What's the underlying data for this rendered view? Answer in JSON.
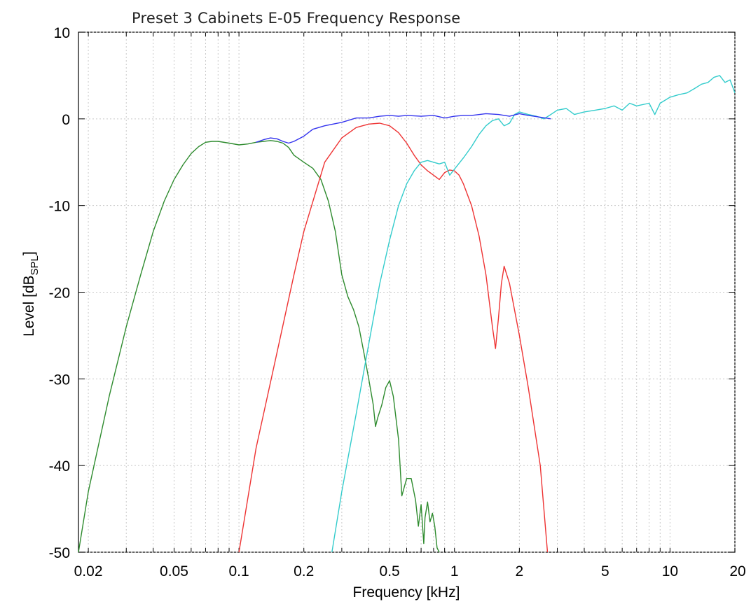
{
  "chart_data": {
    "type": "line",
    "title": "Preset 3 Cabinets E-05 Frequency Response",
    "xlabel": "Frequency [kHz]",
    "ylabel": "Level [dBSPL]",
    "ylabel_main": "Level [dB",
    "ylabel_sub": "SPL",
    "ylabel_end": "]",
    "x_scale": "log",
    "xlim": [
      0.018,
      20
    ],
    "ylim": [
      -50,
      10
    ],
    "grid": true,
    "xticks": [
      0.02,
      0.05,
      0.1,
      0.2,
      0.5,
      1,
      2,
      5,
      10,
      20
    ],
    "xtick_labels": [
      "0.02",
      "0.05",
      "0.1",
      "0.2",
      "0.5",
      "1",
      "2",
      "5",
      "10",
      "20"
    ],
    "yticks": [
      10,
      0,
      -10,
      -20,
      -30,
      -40,
      -50
    ],
    "ytick_labels": [
      "10",
      "0",
      "-10",
      "-20",
      "-30",
      "-40",
      "-50"
    ],
    "series": [
      {
        "color": "#2e8b2e",
        "x": [
          0.018,
          0.02,
          0.025,
          0.03,
          0.035,
          0.04,
          0.045,
          0.05,
          0.055,
          0.06,
          0.065,
          0.07,
          0.075,
          0.08,
          0.09,
          0.1,
          0.11,
          0.12,
          0.13,
          0.14,
          0.15,
          0.16,
          0.17,
          0.18,
          0.2,
          0.22,
          0.24,
          0.26,
          0.28,
          0.3,
          0.32,
          0.34,
          0.36,
          0.38,
          0.4,
          0.42,
          0.43,
          0.44,
          0.46,
          0.48,
          0.5,
          0.52,
          0.55,
          0.57,
          0.6,
          0.63,
          0.66,
          0.68,
          0.7,
          0.72,
          0.73,
          0.75,
          0.77,
          0.79,
          0.81,
          0.83,
          0.85
        ],
        "y": [
          -50,
          -43,
          -32,
          -24,
          -18,
          -13,
          -9.5,
          -7,
          -5.3,
          -4,
          -3.2,
          -2.7,
          -2.6,
          -2.6,
          -2.8,
          -3.0,
          -2.9,
          -2.7,
          -2.6,
          -2.5,
          -2.6,
          -2.8,
          -3.3,
          -4.2,
          -5,
          -5.7,
          -7,
          -9.5,
          -13,
          -18,
          -20.5,
          -22,
          -24,
          -27,
          -30,
          -33,
          -35.5,
          -34.5,
          -33,
          -31,
          -30.2,
          -32,
          -37,
          -43.5,
          -41.5,
          -41.5,
          -44,
          -47,
          -44.5,
          -49,
          -46,
          -44.2,
          -46.5,
          -45.5,
          -47,
          -49.5,
          -50
        ]
      },
      {
        "color": "#ee3333",
        "x": [
          0.1,
          0.12,
          0.15,
          0.18,
          0.2,
          0.25,
          0.3,
          0.35,
          0.4,
          0.45,
          0.5,
          0.55,
          0.6,
          0.65,
          0.7,
          0.75,
          0.8,
          0.85,
          0.9,
          0.95,
          1.0,
          1.05,
          1.1,
          1.2,
          1.3,
          1.4,
          1.5,
          1.55,
          1.6,
          1.65,
          1.7,
          1.8,
          2.0,
          2.2,
          2.5,
          2.7
        ],
        "y": [
          -50,
          -38,
          -27,
          -18,
          -13,
          -5,
          -2.2,
          -1,
          -0.6,
          -0.5,
          -0.8,
          -1.6,
          -2.8,
          -4.2,
          -5.3,
          -6,
          -6.5,
          -7,
          -6.2,
          -5.9,
          -6,
          -6.5,
          -7.5,
          -10,
          -13.5,
          -18,
          -24,
          -26.5,
          -23,
          -19,
          -17,
          -19,
          -25,
          -31,
          -40,
          -50
        ]
      },
      {
        "color": "#33cccc",
        "x": [
          0.27,
          0.3,
          0.35,
          0.4,
          0.45,
          0.5,
          0.55,
          0.6,
          0.65,
          0.7,
          0.75,
          0.8,
          0.85,
          0.9,
          0.95,
          1.0,
          1.1,
          1.2,
          1.3,
          1.4,
          1.5,
          1.6,
          1.7,
          1.8,
          1.9,
          2.0,
          2.2,
          2.4,
          2.6,
          2.8,
          3,
          3.3,
          3.6,
          4,
          4.5,
          5,
          5.5,
          6,
          6.5,
          7,
          8,
          8.5,
          9,
          10,
          11,
          12,
          13,
          14,
          15,
          16,
          17,
          18,
          19,
          20
        ],
        "y": [
          -50,
          -43,
          -34,
          -26,
          -19,
          -14,
          -10,
          -7.5,
          -6,
          -5,
          -4.8,
          -5,
          -5.2,
          -5,
          -6.5,
          -5.8,
          -4.5,
          -3.2,
          -1.8,
          -0.8,
          -0.2,
          0,
          -0.8,
          -0.5,
          0.5,
          0.8,
          0.5,
          0.3,
          0,
          0.5,
          1,
          1.2,
          0.5,
          0.8,
          1.0,
          1.2,
          1.5,
          1.0,
          1.8,
          1.5,
          1.8,
          0.5,
          1.8,
          2.5,
          2.8,
          3.0,
          3.5,
          4.0,
          4.2,
          4.8,
          5.0,
          4.2,
          4.5,
          3.0
        ]
      },
      {
        "color": "#3333ee",
        "x": [
          0.12,
          0.13,
          0.14,
          0.15,
          0.16,
          0.17,
          0.18,
          0.2,
          0.22,
          0.25,
          0.3,
          0.35,
          0.4,
          0.45,
          0.5,
          0.55,
          0.6,
          0.7,
          0.8,
          0.9,
          1.0,
          1.1,
          1.2,
          1.4,
          1.6,
          1.8,
          2.0,
          2.2,
          2.5,
          2.8
        ],
        "y": [
          -2.7,
          -2.4,
          -2.2,
          -2.3,
          -2.6,
          -2.8,
          -2.6,
          -2,
          -1.2,
          -0.8,
          -0.4,
          0.1,
          0.1,
          0.3,
          0.4,
          0.3,
          0.4,
          0.3,
          0.4,
          0.1,
          0.3,
          0.4,
          0.4,
          0.6,
          0.5,
          0.3,
          0.6,
          0.4,
          0.2,
          0.0
        ]
      }
    ]
  }
}
